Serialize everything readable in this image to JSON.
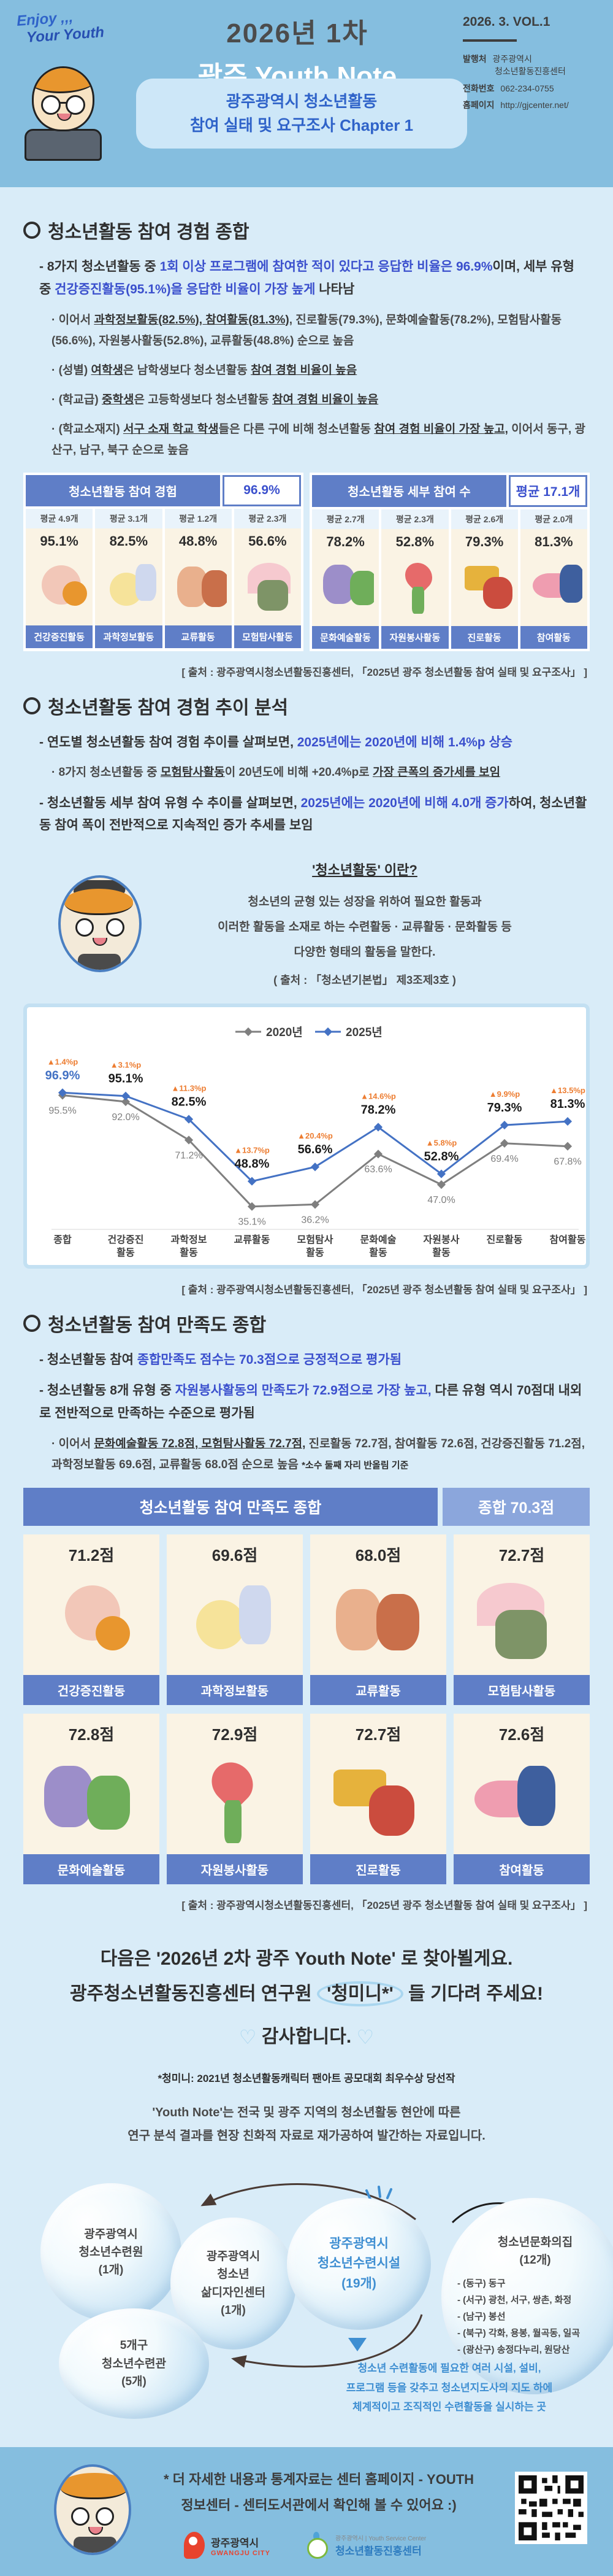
{
  "colors": {
    "header_bg": "#85bedf",
    "body_bg": "#d9ecf8",
    "table_header_blue": "#5f7ec7",
    "highlight_blue": "#3b50cd",
    "bubble_text_blue": "#3f8fd2",
    "delta_orange": "#ed7d31",
    "series_2020_gray": "#7f7f7f",
    "series_2025_blue": "#4472c4",
    "card_cream": "#faf3e4"
  },
  "header": {
    "logo_line1": "Enjoy ,,,",
    "logo_line2": "Your Youth",
    "title_line1": "2026년 1차",
    "title_line2": "광주 Youth Note",
    "badge_line1": "광주광역시 청소년활동",
    "badge_line2": "참여 실태 및 요구조사 Chapter 1",
    "volume": "2026. 3. VOL.1",
    "publisher_label": "발행처",
    "publisher_value1": "광주광역시",
    "publisher_value2": "청소년활동진흥센터",
    "phone_label": "전화번호",
    "phone_value": "062-234-0755",
    "website_label": "홈페이지",
    "website_value": "http://gjcenter.net/"
  },
  "source_note": "[ 출처 : 광주광역시청소년활동진흥센터, 「2025년 광주 청소년활동 참여 실태 및 요구조사」 ]",
  "section1": {
    "title": "청소년활동 참여 경험 종합",
    "b1": [
      "- 8가지 청소년활동 중 ",
      "1회 이상 프로그램에 참여한 적이 있다고 응답한 비율은 96.9%",
      "이며, 세부 유형 중 ",
      "건강증진활동(95.1%)을 응답한 비율이 가장 높게",
      " 나타남"
    ],
    "sub1": [
      "· 이어서 ",
      "과학정보활동(82.5%), 참여활동(81.3%)",
      ", 진로활동(79.3%), 문화예술활동(78.2%), 모험탐사활동(56.6%), 자원봉사활동(52.8%), 교류활동(48.8%) 순으로 높음"
    ],
    "sub2": [
      "· (성별) ",
      "여학생",
      "은 남학생보다 청소년활동 ",
      "참여 경험 비율이 높음"
    ],
    "sub3": [
      "· (학교급) ",
      "중학생",
      "은 고등학생보다 청소년활동 ",
      "참여 경험 비율이 높음"
    ],
    "sub4": [
      "· (학교소재지) ",
      "서구 소재 학교 학생",
      "들은 다른 구에 비해 청소년활동 ",
      "참여 경험 비율이 가장 높고,",
      " 이어서 동구, 광산구, 남구, 북구 순으로 높음"
    ]
  },
  "participation_tables": [
    {
      "title": "청소년활동 참여 경험",
      "headline": "96.9%",
      "cards": [
        {
          "avg": "평균 4.9개",
          "pct": "95.1%",
          "label": "건강증진활동"
        },
        {
          "avg": "평균 3.1개",
          "pct": "82.5%",
          "label": "과학정보활동"
        },
        {
          "avg": "평균 1.2개",
          "pct": "48.8%",
          "label": "교류활동"
        },
        {
          "avg": "평균 2.3개",
          "pct": "56.6%",
          "label": "모험탐사활동"
        }
      ]
    },
    {
      "title": "청소년활동 세부 참여 수",
      "headline": "평균 17.1개",
      "cards": [
        {
          "avg": "평균 2.7개",
          "pct": "78.2%",
          "label": "문화예술활동"
        },
        {
          "avg": "평균 2.3개",
          "pct": "52.8%",
          "label": "자원봉사활동"
        },
        {
          "avg": "평균 2.6개",
          "pct": "79.3%",
          "label": "진로활동"
        },
        {
          "avg": "평균 2.0개",
          "pct": "81.3%",
          "label": "참여활동"
        }
      ]
    }
  ],
  "section2": {
    "title": "청소년활동 참여 경험 추이 분석",
    "b1": [
      "- 연도별 청소년활동 참여 경험 추이를 살펴보면, ",
      "2025년에는 2020년에 비해 1.4%p 상승"
    ],
    "sub1": [
      "· 8가지 청소년활동 중 ",
      "모험탐사활동",
      "이 20년도에 비해 +20.4%p로 ",
      "가장 큰폭의 증가세를 보임"
    ],
    "b2": [
      "- 청소년활동 세부 참여 유형 수 추이를 살펴보면, ",
      "2025년에는 2020년에 비해 4.0개 증가",
      "하여, 청소년활동 참여 폭이 전반적으로 지속적인 증가 추세를 보임"
    ]
  },
  "infobox": {
    "title": "'청소년활동' 이란?",
    "line1": "청소년의 균형 있는 성장을 위하여 필요한 활동과",
    "line2": "이러한 활동을 소재로 하는 수련활동 · 교류활동 · 문화활동 등",
    "line3": "다양한 형태의 활동을 말한다.",
    "source": "( 출처 : 「청소년기본법」 제3조제3호 )"
  },
  "chart_data": {
    "type": "line",
    "categories": [
      "종합",
      "건강증진활동",
      "과학정보활동",
      "교류활동",
      "모험탐사활동",
      "문화예술활동",
      "자원봉사활동",
      "진로활동",
      "참여활동"
    ],
    "series": [
      {
        "name": "2020년",
        "color": "#7f7f7f",
        "values": [
          95.5,
          92.0,
          71.2,
          35.1,
          36.2,
          63.6,
          47.0,
          69.4,
          67.8
        ]
      },
      {
        "name": "2025년",
        "color": "#4472c4",
        "values": [
          96.9,
          95.1,
          82.5,
          48.8,
          56.6,
          78.2,
          52.8,
          79.3,
          81.3
        ]
      }
    ],
    "deltas": [
      "▲1.4%p",
      "▲3.1%p",
      "▲11.3%p",
      "▲13.7%p",
      "▲20.4%p",
      "▲14.6%p",
      "▲5.8%p",
      "▲9.9%p",
      "▲13.5%p"
    ],
    "delta_color": "#ed7d31",
    "ylim": [
      30,
      100
    ],
    "grid": false,
    "legend_position": "top"
  },
  "section3": {
    "title": "청소년활동 참여 만족도 종합",
    "b1": [
      "- 청소년활동 참여 ",
      "종합만족도 점수는 70.3점으로 긍정적으로 평가됨"
    ],
    "b2": [
      "- 청소년활동 8개 유형 중 ",
      "자원봉사활동의 만족도가 72.9점으로 가장 높고,",
      " 다른 유형 역시 70점대 내외로 전반적으로 만족하는 수준으로 평가됨"
    ],
    "sub1": [
      "· 이어서 ",
      "문화예술활동 72.8점, 모험탐사활동 72.7점,",
      " 진로활동 72.7점, 참여활동 72.6점, 건강증진활동 71.2점, 과학정보활동 69.6점, 교류활동 68.0점 순으로 높음 ",
      "*소수 둘째 자리 반올림 기준"
    ]
  },
  "satisfaction": {
    "header": "청소년활동 참여 만족도 종합",
    "total": "종합 70.3점",
    "cards": [
      {
        "score": "71.2점",
        "label": "건강증진활동"
      },
      {
        "score": "69.6점",
        "label": "과학정보활동"
      },
      {
        "score": "68.0점",
        "label": "교류활동"
      },
      {
        "score": "72.7점",
        "label": "모험탐사활동"
      },
      {
        "score": "72.8점",
        "label": "문화예술활동"
      },
      {
        "score": "72.9점",
        "label": "자원봉사활동"
      },
      {
        "score": "72.7점",
        "label": "진로활동"
      },
      {
        "score": "72.6점",
        "label": "참여활동"
      }
    ]
  },
  "closing": {
    "line1": "다음은 '2026년 2차 광주 Youth Note' 로 찾아뵐게요.",
    "line2a": "광주청소년활동진흥센터 연구원 ",
    "line2b": "'청미니*'",
    "line2c": " 들 기다려 주세요!",
    "heart": "♡",
    "thanks": "감사합니다.",
    "note": "*청미니: 2021년 청소년활동캐릭터 팬아트 공모대회 최우수상 당선작",
    "desc1": "'Youth Note'는 전국 및 광주 지역의 청소년활동 현안에 따른",
    "desc2": "연구 분석 결과를 현장 친화적 자료로 재가공하여 발간하는 자료입니다."
  },
  "diagram": {
    "bubble_center": [
      "광주광역시",
      "청소년수련시설",
      "(19개)"
    ],
    "bubble_resort": [
      "광주광역시",
      "청소년수련원",
      "(1개)"
    ],
    "bubble_design": [
      "광주광역시",
      "청소년",
      "삶디자인센터",
      "(1개)"
    ],
    "bubble_gu": [
      "5개구",
      "청소년수련관",
      "(5개)"
    ],
    "bubble_culture_title": [
      "청소년문화의집",
      "(12개)"
    ],
    "bubble_culture_items": [
      "- (동구) 동구",
      "- (서구) 광천, 서구, 쌍촌, 화정",
      "- (남구) 봉선",
      "- (북구) 각화, 용봉, 월곡동, 일곡",
      "- (광산구) 송정다누리, 원당산"
    ],
    "definition": [
      "청소년 수련활동에 필요한 여러 시설, 설비,",
      "프로그램 등을 갖추고 청소년지도사의 지도 하에",
      "체계적이고 조직적인 수련활동을 실시하는 곳"
    ]
  },
  "footer": {
    "note1": "* 더 자세한 내용과 통계자료는 센터 홈페이지 - YOUTH",
    "note2": "정보센터 - 센터도서관에서 확인해 볼 수 있어요 :)",
    "logo1_kr": "광주광역시",
    "logo1_en": "GWANGJU CITY",
    "logo2_small": "광주광역시 | Youth Service Center",
    "logo2_kr": "청소년활동진흥센터"
  }
}
